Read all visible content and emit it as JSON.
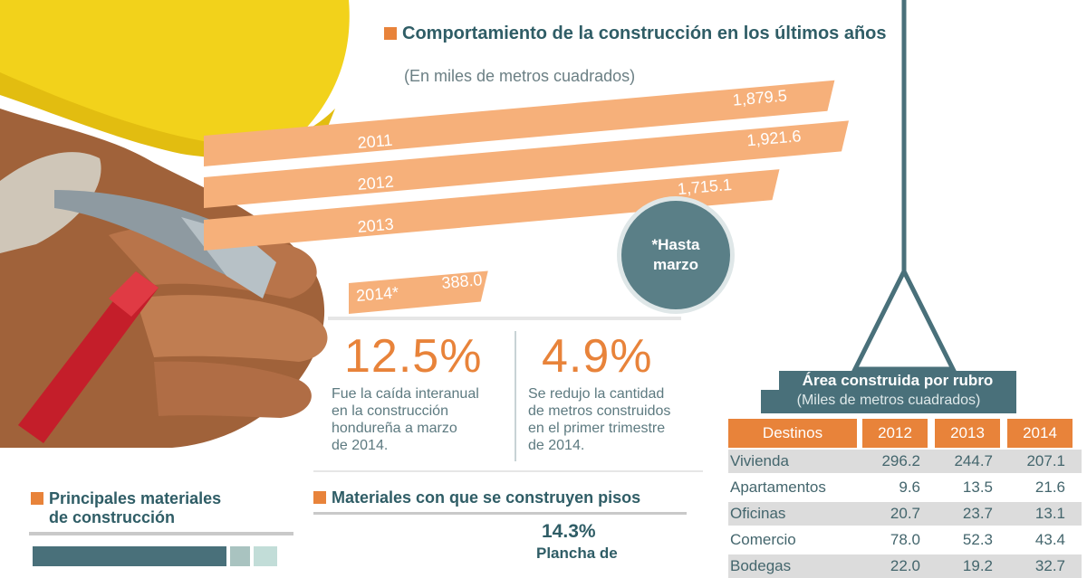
{
  "chart_data": [
    {
      "type": "bar",
      "title": "Comportamiento de la construcción en los últimos años",
      "subtitle": "(En miles de metros cuadrados)",
      "categories": [
        "2011",
        "2012",
        "2013",
        "2014*"
      ],
      "values": [
        1879.5,
        1921.6,
        1715.1,
        388.0
      ],
      "value_labels": [
        "1,879.5",
        "1,921.6",
        "1,715.1",
        "388.0"
      ],
      "note": "*Hasta marzo",
      "colors": {
        "bar": "#f6b07a",
        "bar_text": "#ffffff"
      }
    },
    {
      "type": "table",
      "title": "Área construida por rubro",
      "subtitle": "(Miles de metros cuadrados)",
      "columns": [
        "Destinos",
        "2012",
        "2013",
        "2014"
      ],
      "rows": [
        [
          "Vivienda",
          "296.2",
          "244.7",
          "207.1"
        ],
        [
          "Apartamentos",
          "9.6",
          "13.5",
          "21.6"
        ],
        [
          "Oficinas",
          "20.7",
          "23.7",
          "13.1"
        ],
        [
          "Comercio",
          "78.0",
          "52.3",
          "43.4"
        ],
        [
          "Bodegas",
          "22.0",
          "19.2",
          "32.7"
        ]
      ]
    }
  ],
  "stats": [
    {
      "value": "12.5%",
      "text": [
        "Fue la caída interanual",
        "en la construcción",
        "hondureña a marzo",
        "de 2014."
      ]
    },
    {
      "value": "4.9%",
      "text": [
        "Se redujo la cantidad",
        "de metros construidos",
        "en el primer trimestre",
        "de 2014."
      ]
    }
  ],
  "materials": {
    "title": [
      "Principales materiales",
      "de construcción"
    ]
  },
  "floors": {
    "title": "Materiales con que se construyen pisos",
    "pct": "14.3%",
    "label": "Plancha de"
  },
  "colors": {
    "accent": "#e8833a",
    "teal": "#49707a",
    "text": "#2f5d66"
  }
}
